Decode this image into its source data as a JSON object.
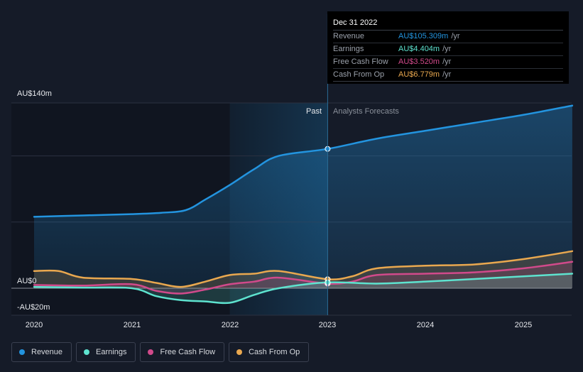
{
  "chart_data": {
    "type": "line",
    "x_tick_labels": [
      "2020",
      "2021",
      "2022",
      "2023",
      "2024",
      "2025"
    ],
    "y_tick_labels": [
      "AU$140m",
      "AU$0",
      "-AU$20m"
    ],
    "ylim": [
      -20,
      140
    ],
    "divider_label_past": "Past",
    "divider_label_forecast": "Analysts Forecasts",
    "divider_x": 2023.0,
    "series": [
      {
        "name": "Revenue",
        "color": "#2394df",
        "points": [
          [
            2020.0,
            54
          ],
          [
            2020.5,
            55
          ],
          [
            2021.0,
            56
          ],
          [
            2021.3,
            57
          ],
          [
            2021.55,
            59
          ],
          [
            2021.75,
            67
          ],
          [
            2022.0,
            78
          ],
          [
            2022.25,
            90
          ],
          [
            2022.5,
            100
          ],
          [
            2023.0,
            105.3
          ],
          [
            2023.5,
            113
          ],
          [
            2024.0,
            119
          ],
          [
            2024.5,
            125
          ],
          [
            2025.0,
            131
          ],
          [
            2025.5,
            138
          ]
        ]
      },
      {
        "name": "Earnings",
        "color": "#5ee3cf",
        "points": [
          [
            2020.0,
            1
          ],
          [
            2020.5,
            0.5
          ],
          [
            2021.0,
            0
          ],
          [
            2021.25,
            -6
          ],
          [
            2021.5,
            -9
          ],
          [
            2021.75,
            -10
          ],
          [
            2022.0,
            -11
          ],
          [
            2022.25,
            -5
          ],
          [
            2022.5,
            0
          ],
          [
            2023.0,
            4.4
          ],
          [
            2023.5,
            3.5
          ],
          [
            2024.0,
            5
          ],
          [
            2024.5,
            7
          ],
          [
            2025.0,
            9
          ],
          [
            2025.5,
            11
          ]
        ]
      },
      {
        "name": "Free Cash Flow",
        "color": "#d14a8b",
        "points": [
          [
            2020.0,
            2.5
          ],
          [
            2020.5,
            2
          ],
          [
            2021.0,
            3
          ],
          [
            2021.25,
            -2
          ],
          [
            2021.5,
            -4
          ],
          [
            2021.75,
            -1
          ],
          [
            2022.0,
            3
          ],
          [
            2022.25,
            5
          ],
          [
            2022.5,
            8
          ],
          [
            2023.0,
            3.5
          ],
          [
            2023.25,
            5
          ],
          [
            2023.5,
            10
          ],
          [
            2024.0,
            11
          ],
          [
            2024.5,
            12
          ],
          [
            2025.0,
            15
          ],
          [
            2025.5,
            20
          ]
        ]
      },
      {
        "name": "Cash From Op",
        "color": "#e9a84f",
        "points": [
          [
            2020.0,
            13
          ],
          [
            2020.25,
            13
          ],
          [
            2020.5,
            8
          ],
          [
            2021.0,
            7
          ],
          [
            2021.25,
            4
          ],
          [
            2021.5,
            1
          ],
          [
            2021.75,
            5
          ],
          [
            2022.0,
            10
          ],
          [
            2022.25,
            11
          ],
          [
            2022.5,
            13
          ],
          [
            2023.0,
            6.8
          ],
          [
            2023.25,
            9
          ],
          [
            2023.5,
            15
          ],
          [
            2024.0,
            17
          ],
          [
            2024.5,
            18
          ],
          [
            2025.0,
            22
          ],
          [
            2025.5,
            28
          ]
        ]
      }
    ]
  },
  "tooltip": {
    "date": "Dec 31 2022",
    "rows": [
      {
        "label": "Revenue",
        "value": "AU$105.309m",
        "unit": "/yr",
        "color": "#2394df"
      },
      {
        "label": "Earnings",
        "value": "AU$4.404m",
        "unit": "/yr",
        "color": "#5ee3cf"
      },
      {
        "label": "Free Cash Flow",
        "value": "AU$3.520m",
        "unit": "/yr",
        "color": "#d14a8b"
      },
      {
        "label": "Cash From Op",
        "value": "AU$6.779m",
        "unit": "/yr",
        "color": "#e9a84f"
      }
    ]
  },
  "legend": [
    {
      "label": "Revenue",
      "color": "#2394df"
    },
    {
      "label": "Earnings",
      "color": "#5ee3cf"
    },
    {
      "label": "Free Cash Flow",
      "color": "#d14a8b"
    },
    {
      "label": "Cash From Op",
      "color": "#e9a84f"
    }
  ]
}
